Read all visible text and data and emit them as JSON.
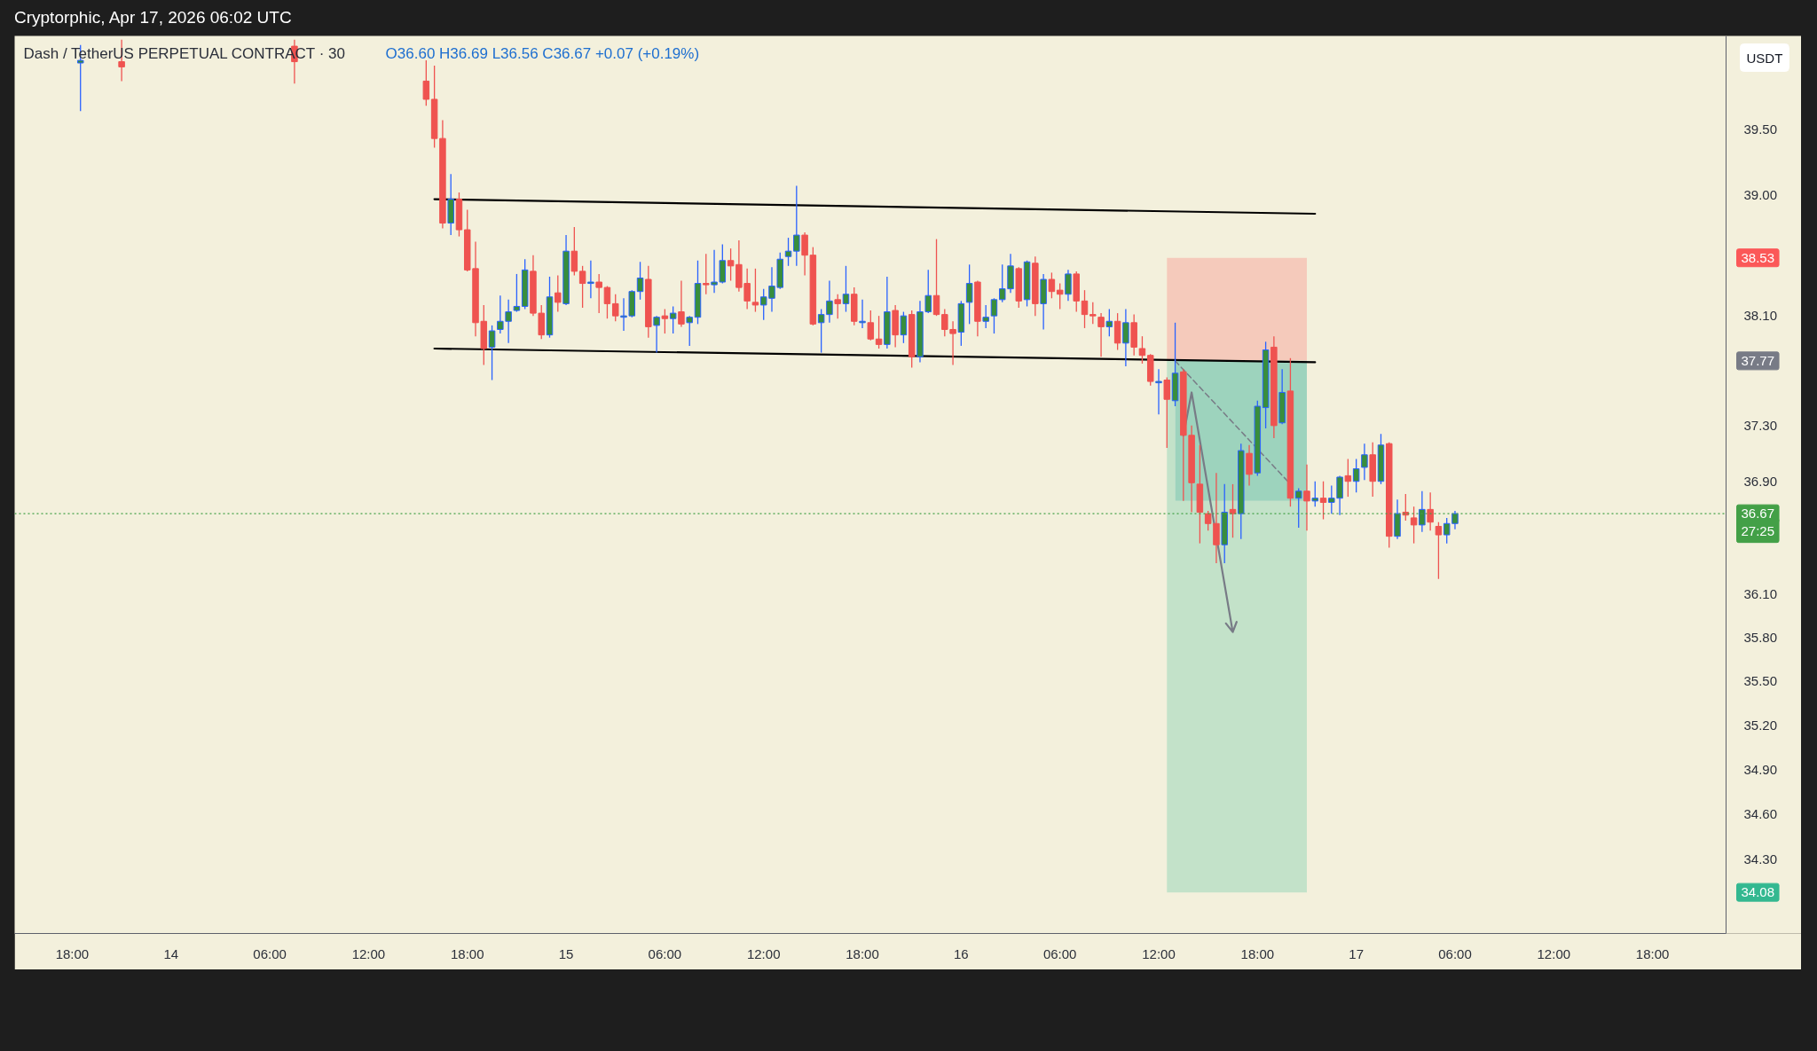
{
  "chart_data": {
    "type": "candlestick",
    "title": "Dash / TetherUS PERPETUAL CONTRACT · 30",
    "subtitle": "O36.60 H36.69 L36.56 C36.67 +0.07 (+0.19%)",
    "ylabel": "USDT",
    "log": true,
    "annotations": [
      "Cryptorphic, Apr 17, 2026 06:02 UTC",
      "38.53",
      "37.77",
      "27:25",
      "34.08"
    ],
    "xlim": [
      "2026-04-13T14:30",
      "2026-04-17T22:28"
    ],
    "ylim": [
      33.81,
      40.22
    ],
    "xticks": [
      {
        "value": "2026-04-13T18:00",
        "label": "18:00"
      },
      {
        "value": "2026-04-14T00:00",
        "label": "14"
      },
      {
        "value": "2026-04-14T06:00",
        "label": "06:00"
      },
      {
        "value": "2026-04-14T12:00",
        "label": "12:00"
      },
      {
        "value": "2026-04-14T18:00",
        "label": "18:00"
      },
      {
        "value": "2026-04-15T00:00",
        "label": "15"
      },
      {
        "value": "2026-04-15T06:00",
        "label": "06:00"
      },
      {
        "value": "2026-04-15T12:00",
        "label": "12:00"
      },
      {
        "value": "2026-04-15T18:00",
        "label": "18:00"
      },
      {
        "value": "2026-04-16T00:00",
        "label": "16"
      },
      {
        "value": "2026-04-16T06:00",
        "label": "06:00"
      },
      {
        "value": "2026-04-16T12:00",
        "label": "12:00"
      },
      {
        "value": "2026-04-16T18:00",
        "label": "18:00"
      },
      {
        "value": "2026-04-17T00:00",
        "label": "17"
      },
      {
        "value": "2026-04-17T06:00",
        "label": "06:00"
      },
      {
        "value": "2026-04-17T12:00",
        "label": "12:00"
      },
      {
        "value": "2026-04-17T18:00",
        "label": "18:00"
      }
    ],
    "yticks": [
      {
        "value": 39.5,
        "label": "39.50"
      },
      {
        "value": 39.0,
        "label": "39.00"
      },
      {
        "value": 38.1,
        "label": "38.10"
      },
      {
        "value": 37.3,
        "label": "37.30"
      },
      {
        "value": 36.9,
        "label": "36.90"
      },
      {
        "value": 36.1,
        "label": "36.10"
      },
      {
        "value": 35.8,
        "label": "35.80"
      },
      {
        "value": 35.5,
        "label": "35.50"
      },
      {
        "value": 35.2,
        "label": "35.20"
      },
      {
        "value": 34.9,
        "label": "34.90"
      },
      {
        "value": 34.6,
        "label": "34.60"
      },
      {
        "value": 34.3,
        "label": "34.30"
      }
    ],
    "x": [
      "2026-04-13T18:30",
      "2026-04-13T21:00",
      "2026-04-14T07:30",
      "2026-04-14T15:30",
      "2026-04-14T16:00",
      "2026-04-14T16:30",
      "2026-04-14T17:00",
      "2026-04-14T17:30",
      "2026-04-14T18:00",
      "2026-04-14T18:30",
      "2026-04-14T19:00",
      "2026-04-14T19:30",
      "2026-04-14T20:00",
      "2026-04-14T20:30",
      "2026-04-14T21:00",
      "2026-04-14T21:30",
      "2026-04-14T22:00",
      "2026-04-14T22:30",
      "2026-04-14T23:00",
      "2026-04-14T23:30",
      "2026-04-15T00:00",
      "2026-04-15T00:30",
      "2026-04-15T01:00",
      "2026-04-15T01:30",
      "2026-04-15T02:00",
      "2026-04-15T02:30",
      "2026-04-15T03:00",
      "2026-04-15T03:30",
      "2026-04-15T04:00",
      "2026-04-15T04:30",
      "2026-04-15T05:00",
      "2026-04-15T05:30",
      "2026-04-15T06:00",
      "2026-04-15T06:30",
      "2026-04-15T07:00",
      "2026-04-15T07:30",
      "2026-04-15T08:00",
      "2026-04-15T08:30",
      "2026-04-15T09:00",
      "2026-04-15T09:30",
      "2026-04-15T10:00",
      "2026-04-15T10:30",
      "2026-04-15T11:00",
      "2026-04-15T11:30",
      "2026-04-15T12:00",
      "2026-04-15T12:30",
      "2026-04-15T13:00",
      "2026-04-15T13:30",
      "2026-04-15T14:00",
      "2026-04-15T14:30",
      "2026-04-15T15:00",
      "2026-04-15T15:30",
      "2026-04-15T16:00",
      "2026-04-15T16:30",
      "2026-04-15T17:00",
      "2026-04-15T17:30",
      "2026-04-15T18:00",
      "2026-04-15T18:30",
      "2026-04-15T19:00",
      "2026-04-15T19:30",
      "2026-04-15T20:00",
      "2026-04-15T20:30",
      "2026-04-15T21:00",
      "2026-04-15T21:30",
      "2026-04-15T22:00",
      "2026-04-15T22:30",
      "2026-04-15T23:00",
      "2026-04-15T23:30",
      "2026-04-16T00:00",
      "2026-04-16T00:30",
      "2026-04-16T01:00",
      "2026-04-16T01:30",
      "2026-04-16T02:00",
      "2026-04-16T02:30",
      "2026-04-16T03:00",
      "2026-04-16T03:30",
      "2026-04-16T04:00",
      "2026-04-16T04:30",
      "2026-04-16T05:00",
      "2026-04-16T05:30",
      "2026-04-16T06:00",
      "2026-04-16T06:30",
      "2026-04-16T07:00",
      "2026-04-16T07:30",
      "2026-04-16T08:00",
      "2026-04-16T08:30",
      "2026-04-16T09:00",
      "2026-04-16T09:30",
      "2026-04-16T10:00",
      "2026-04-16T10:30",
      "2026-04-16T11:00",
      "2026-04-16T11:30",
      "2026-04-16T12:00",
      "2026-04-16T12:30",
      "2026-04-16T13:00",
      "2026-04-16T13:30",
      "2026-04-16T14:00",
      "2026-04-16T14:30",
      "2026-04-16T15:00",
      "2026-04-16T15:30",
      "2026-04-16T16:00",
      "2026-04-16T16:30",
      "2026-04-16T17:00",
      "2026-04-16T17:30",
      "2026-04-16T18:00",
      "2026-04-16T18:30",
      "2026-04-16T19:00",
      "2026-04-16T19:30",
      "2026-04-16T20:00",
      "2026-04-16T20:30",
      "2026-04-16T21:00",
      "2026-04-16T21:30",
      "2026-04-16T22:00",
      "2026-04-16T22:30",
      "2026-04-16T23:00",
      "2026-04-16T23:30",
      "2026-04-17T00:00",
      "2026-04-17T00:30",
      "2026-04-17T01:00",
      "2026-04-17T01:30",
      "2026-04-17T02:00",
      "2026-04-17T02:30",
      "2026-04-17T03:00",
      "2026-04-17T03:30",
      "2026-04-17T04:00",
      "2026-04-17T04:30",
      "2026-04-17T05:00",
      "2026-04-17T05:30",
      "2026-04-17T06:00"
    ],
    "ohlc": [
      [
        40.01,
        40.15,
        39.64,
        40.03
      ],
      [
        40.02,
        40.19,
        39.87,
        39.98
      ],
      [
        40.14,
        40.19,
        39.85,
        40.02
      ],
      [
        39.87,
        40.03,
        39.68,
        39.73
      ],
      [
        39.73,
        39.99,
        39.36,
        39.43
      ],
      [
        39.43,
        39.57,
        38.75,
        38.79
      ],
      [
        38.79,
        39.16,
        38.7,
        38.97
      ],
      [
        38.97,
        39.02,
        38.69,
        38.74
      ],
      [
        38.74,
        38.89,
        38.43,
        38.44
      ],
      [
        38.45,
        38.65,
        37.95,
        38.05
      ],
      [
        38.06,
        38.18,
        37.74,
        37.86
      ],
      [
        37.87,
        38.03,
        37.63,
        37.99
      ],
      [
        38.0,
        38.25,
        37.97,
        38.06
      ],
      [
        38.06,
        38.22,
        37.9,
        38.13
      ],
      [
        38.14,
        38.41,
        38.13,
        38.17
      ],
      [
        38.17,
        38.52,
        38.15,
        38.44
      ],
      [
        38.43,
        38.55,
        38.1,
        38.12
      ],
      [
        38.12,
        38.18,
        37.93,
        37.96
      ],
      [
        37.96,
        38.39,
        37.94,
        38.24
      ],
      [
        38.27,
        38.4,
        38.13,
        38.2
      ],
      [
        38.19,
        38.7,
        38.18,
        38.58
      ],
      [
        38.58,
        38.76,
        38.4,
        38.43
      ],
      [
        38.43,
        38.47,
        38.16,
        38.34
      ],
      [
        38.34,
        38.51,
        38.23,
        38.35
      ],
      [
        38.35,
        38.41,
        38.12,
        38.31
      ],
      [
        38.31,
        38.32,
        38.08,
        38.19
      ],
      [
        38.19,
        38.26,
        38.06,
        38.1
      ],
      [
        38.09,
        38.23,
        37.99,
        38.1
      ],
      [
        38.1,
        38.29,
        38.09,
        38.28
      ],
      [
        38.28,
        38.5,
        38.22,
        38.38
      ],
      [
        38.37,
        38.47,
        37.94,
        38.02
      ],
      [
        38.03,
        38.1,
        37.83,
        38.09
      ],
      [
        38.1,
        38.15,
        37.97,
        38.08
      ],
      [
        38.08,
        38.17,
        37.97,
        38.12
      ],
      [
        38.13,
        38.36,
        38.02,
        38.04
      ],
      [
        38.05,
        38.1,
        37.88,
        38.09
      ],
      [
        38.09,
        38.51,
        38.04,
        38.34
      ],
      [
        38.34,
        38.56,
        38.26,
        38.33
      ],
      [
        38.33,
        38.59,
        38.27,
        38.35
      ],
      [
        38.35,
        38.63,
        38.34,
        38.51
      ],
      [
        38.51,
        38.6,
        38.36,
        38.47
      ],
      [
        38.48,
        38.66,
        38.28,
        38.31
      ],
      [
        38.34,
        38.45,
        38.15,
        38.21
      ],
      [
        38.2,
        38.45,
        38.13,
        38.18
      ],
      [
        38.18,
        38.3,
        38.07,
        38.24
      ],
      [
        38.23,
        38.46,
        38.13,
        38.32
      ],
      [
        38.31,
        38.57,
        38.3,
        38.52
      ],
      [
        38.54,
        38.68,
        38.47,
        38.58
      ],
      [
        38.58,
        39.07,
        38.47,
        38.7
      ],
      [
        38.7,
        38.72,
        38.4,
        38.55
      ],
      [
        38.55,
        38.61,
        38.03,
        38.04
      ],
      [
        38.05,
        38.15,
        37.83,
        38.11
      ],
      [
        38.11,
        38.36,
        38.05,
        38.21
      ],
      [
        38.22,
        38.26,
        38.08,
        38.19
      ],
      [
        38.19,
        38.47,
        38.13,
        38.26
      ],
      [
        38.26,
        38.31,
        38.03,
        38.06
      ],
      [
        38.05,
        38.22,
        38.01,
        38.06
      ],
      [
        38.05,
        38.14,
        37.92,
        37.93
      ],
      [
        37.93,
        38.1,
        37.86,
        37.89
      ],
      [
        37.89,
        38.39,
        37.86,
        38.13
      ],
      [
        38.14,
        38.18,
        37.87,
        37.96
      ],
      [
        37.96,
        38.13,
        37.9,
        38.1
      ],
      [
        38.11,
        38.14,
        37.72,
        37.8
      ],
      [
        37.8,
        38.21,
        37.76,
        38.13
      ],
      [
        38.13,
        38.44,
        38.12,
        38.25
      ],
      [
        38.25,
        38.67,
        38.1,
        38.11
      ],
      [
        38.11,
        38.15,
        37.95,
        38.0
      ],
      [
        38.0,
        38.06,
        37.74,
        37.97
      ],
      [
        37.98,
        38.21,
        37.88,
        38.19
      ],
      [
        38.2,
        38.48,
        38.04,
        38.34
      ],
      [
        38.35,
        38.36,
        37.95,
        38.06
      ],
      [
        38.06,
        38.18,
        38.01,
        38.09
      ],
      [
        38.1,
        38.23,
        37.97,
        38.22
      ],
      [
        38.22,
        38.48,
        38.2,
        38.3
      ],
      [
        38.3,
        38.56,
        38.27,
        38.47
      ],
      [
        38.45,
        38.46,
        38.16,
        38.21
      ],
      [
        38.22,
        38.51,
        38.17,
        38.5
      ],
      [
        38.49,
        38.54,
        38.1,
        38.19
      ],
      [
        38.19,
        38.41,
        38.0,
        38.37
      ],
      [
        38.37,
        38.42,
        38.23,
        38.28
      ],
      [
        38.29,
        38.34,
        38.15,
        38.26
      ],
      [
        38.26,
        38.44,
        38.21,
        38.41
      ],
      [
        38.41,
        38.43,
        38.13,
        38.21
      ],
      [
        38.21,
        38.29,
        38.01,
        38.11
      ],
      [
        38.11,
        38.2,
        38.04,
        38.1
      ],
      [
        38.09,
        38.12,
        37.8,
        38.02
      ],
      [
        38.02,
        38.15,
        37.95,
        38.06
      ],
      [
        38.06,
        38.12,
        37.85,
        37.9
      ],
      [
        37.9,
        38.15,
        37.73,
        38.05
      ],
      [
        38.05,
        38.11,
        37.81,
        37.87
      ],
      [
        37.86,
        37.95,
        37.75,
        37.81
      ],
      [
        37.81,
        37.82,
        37.59,
        37.62
      ],
      [
        37.61,
        37.71,
        37.38,
        37.62
      ],
      [
        37.63,
        37.65,
        37.14,
        37.49
      ],
      [
        37.48,
        38.05,
        37.44,
        37.68
      ],
      [
        37.69,
        37.71,
        36.76,
        37.23
      ],
      [
        37.23,
        37.3,
        36.68,
        36.89
      ],
      [
        36.88,
        37.16,
        36.46,
        36.68
      ],
      [
        36.67,
        36.69,
        36.55,
        36.6
      ],
      [
        36.6,
        36.96,
        36.32,
        36.45
      ],
      [
        36.45,
        36.88,
        36.32,
        36.68
      ],
      [
        36.7,
        36.88,
        36.5,
        36.67
      ],
      [
        36.67,
        37.17,
        36.49,
        37.12
      ],
      [
        37.1,
        37.16,
        36.87,
        36.95
      ],
      [
        36.96,
        37.48,
        36.94,
        37.44
      ],
      [
        37.43,
        37.91,
        37.28,
        37.85
      ],
      [
        37.87,
        37.95,
        37.21,
        37.3
      ],
      [
        37.32,
        37.71,
        37.31,
        37.54
      ],
      [
        37.55,
        37.79,
        36.72,
        36.78
      ],
      [
        36.78,
        36.85,
        36.57,
        36.83
      ],
      [
        36.83,
        37.02,
        36.55,
        36.76
      ],
      [
        36.76,
        36.9,
        36.72,
        36.78
      ],
      [
        36.78,
        36.9,
        36.63,
        36.75
      ],
      [
        36.75,
        36.87,
        36.67,
        36.78
      ],
      [
        36.78,
        36.94,
        36.66,
        36.93
      ],
      [
        36.94,
        37.06,
        36.79,
        36.9
      ],
      [
        36.9,
        37.06,
        36.82,
        36.99
      ],
      [
        37.0,
        37.17,
        36.91,
        37.09
      ],
      [
        37.09,
        37.18,
        36.79,
        36.9
      ],
      [
        36.9,
        37.24,
        36.88,
        37.16
      ],
      [
        37.17,
        37.18,
        36.43,
        36.51
      ],
      [
        36.51,
        36.77,
        36.49,
        36.67
      ],
      [
        36.68,
        36.81,
        36.62,
        36.66
      ],
      [
        36.64,
        36.72,
        36.46,
        36.59
      ],
      [
        36.59,
        36.83,
        36.54,
        36.7
      ],
      [
        36.7,
        36.82,
        36.55,
        36.61
      ],
      [
        36.58,
        36.61,
        36.21,
        36.52
      ],
      [
        36.52,
        36.64,
        36.46,
        36.6
      ],
      [
        36.6,
        36.69,
        36.56,
        36.67
      ]
    ],
    "colors": [
      "#388e3c",
      "#ef5350",
      "#ef5350",
      "#ef5350",
      "#ef5350",
      "#ef5350",
      "#388e3c",
      "#ef5350",
      "#ef5350",
      "#ef5350",
      "#ef5350",
      "#388e3c",
      "#388e3c",
      "#388e3c",
      "#388e3c",
      "#388e3c",
      "#ef5350",
      "#ef5350",
      "#388e3c",
      "#ef5350",
      "#388e3c",
      "#ef5350",
      "#ef5350",
      "#388e3c",
      "#ef5350",
      "#ef5350",
      "#ef5350",
      "#388e3c",
      "#388e3c",
      "#388e3c",
      "#ef5350",
      "#388e3c",
      "#ef5350",
      "#388e3c",
      "#ef5350",
      "#388e3c",
      "#388e3c",
      "#ef5350",
      "#388e3c",
      "#388e3c",
      "#ef5350",
      "#ef5350",
      "#ef5350",
      "#ef5350",
      "#388e3c",
      "#388e3c",
      "#388e3c",
      "#388e3c",
      "#388e3c",
      "#ef5350",
      "#ef5350",
      "#388e3c",
      "#388e3c",
      "#ef5350",
      "#388e3c",
      "#ef5350",
      "#388e3c",
      "#ef5350",
      "#ef5350",
      "#388e3c",
      "#ef5350",
      "#388e3c",
      "#ef5350",
      "#388e3c",
      "#388e3c",
      "#ef5350",
      "#ef5350",
      "#ef5350",
      "#388e3c",
      "#388e3c",
      "#ef5350",
      "#388e3c",
      "#388e3c",
      "#388e3c",
      "#388e3c",
      "#ef5350",
      "#388e3c",
      "#ef5350",
      "#388e3c",
      "#ef5350",
      "#ef5350",
      "#388e3c",
      "#ef5350",
      "#ef5350",
      "#ef5350",
      "#ef5350",
      "#388e3c",
      "#ef5350",
      "#388e3c",
      "#ef5350",
      "#ef5350",
      "#ef5350",
      "#388e3c",
      "#ef5350",
      "#388e3c",
      "#ef5350",
      "#ef5350",
      "#ef5350",
      "#ef5350",
      "#ef5350",
      "#388e3c",
      "#ef5350",
      "#388e3c",
      "#ef5350",
      "#388e3c",
      "#388e3c",
      "#ef5350",
      "#388e3c",
      "#ef5350",
      "#388e3c",
      "#ef5350",
      "#388e3c",
      "#ef5350",
      "#388e3c",
      "#388e3c",
      "#ef5350",
      "#388e3c",
      "#388e3c",
      "#ef5350",
      "#388e3c",
      "#ef5350",
      "#388e3c",
      "#ef5350",
      "#ef5350",
      "#388e3c",
      "#ef5350",
      "#ef5350",
      "#388e3c",
      "#388e3c"
    ],
    "series": [
      {
        "type": "line",
        "x": [
          "2026-04-16T12:30",
          "2026-04-16T21:00"
        ],
        "values": [
          null,
          null
        ],
        "lower": [
          37.77,
          37.77
        ],
        "upper": [
          38.53,
          38.53
        ],
        "color": "#f5cabb"
      },
      {
        "type": "line",
        "x": [
          "2026-04-16T12:30",
          "2026-04-16T13:00",
          "2026-04-16T13:00",
          "2026-04-16T21:00"
        ],
        "values": [
          null,
          null,
          null,
          null
        ],
        "lower": [
          34.08,
          34.08,
          34.08,
          34.08
        ],
        "upper": [
          37.77,
          37.77,
          36.76,
          36.76
        ],
        "color": "#c3e2c9"
      },
      {
        "type": "line",
        "x": [
          "2026-04-16T13:00",
          "2026-04-16T21:00"
        ],
        "values": [
          null,
          null
        ],
        "lower": [
          36.76,
          36.76
        ],
        "upper": [
          37.77,
          37.77
        ],
        "color": "#9dd3bd"
      },
      {
        "type": "line",
        "x": [
          "2026-04-14T16:00",
          "2026-04-16T21:30"
        ],
        "values": [
          38.97,
          38.86
        ],
        "color": "#000000"
      },
      {
        "type": "line",
        "x": [
          "2026-04-14T16:00",
          "2026-04-16T21:30"
        ],
        "values": [
          37.86,
          37.76
        ],
        "color": "#000000"
      },
      {
        "type": "line",
        "x": [
          "2026-04-16T13:00",
          "2026-04-16T20:00"
        ],
        "values": [
          37.77,
          36.88
        ],
        "color": "#787b86",
        "line_style": "dashed"
      },
      {
        "type": "line",
        "x": [
          "2026-04-16T13:30",
          "2026-04-16T14:00",
          "2026-04-16T16:30",
          "2026-04-16T16:05",
          "2026-04-16T16:30",
          "2026-04-16T16:44"
        ],
        "values": [
          37.23,
          37.54,
          35.84,
          35.9,
          35.84,
          35.91
        ],
        "color": "#787b86"
      }
    ],
    "ref_lines": [
      {
        "axis": "y",
        "value": 36.67,
        "label": "36.67",
        "color": "#43a047",
        "line_style": "dotted"
      }
    ]
  }
}
